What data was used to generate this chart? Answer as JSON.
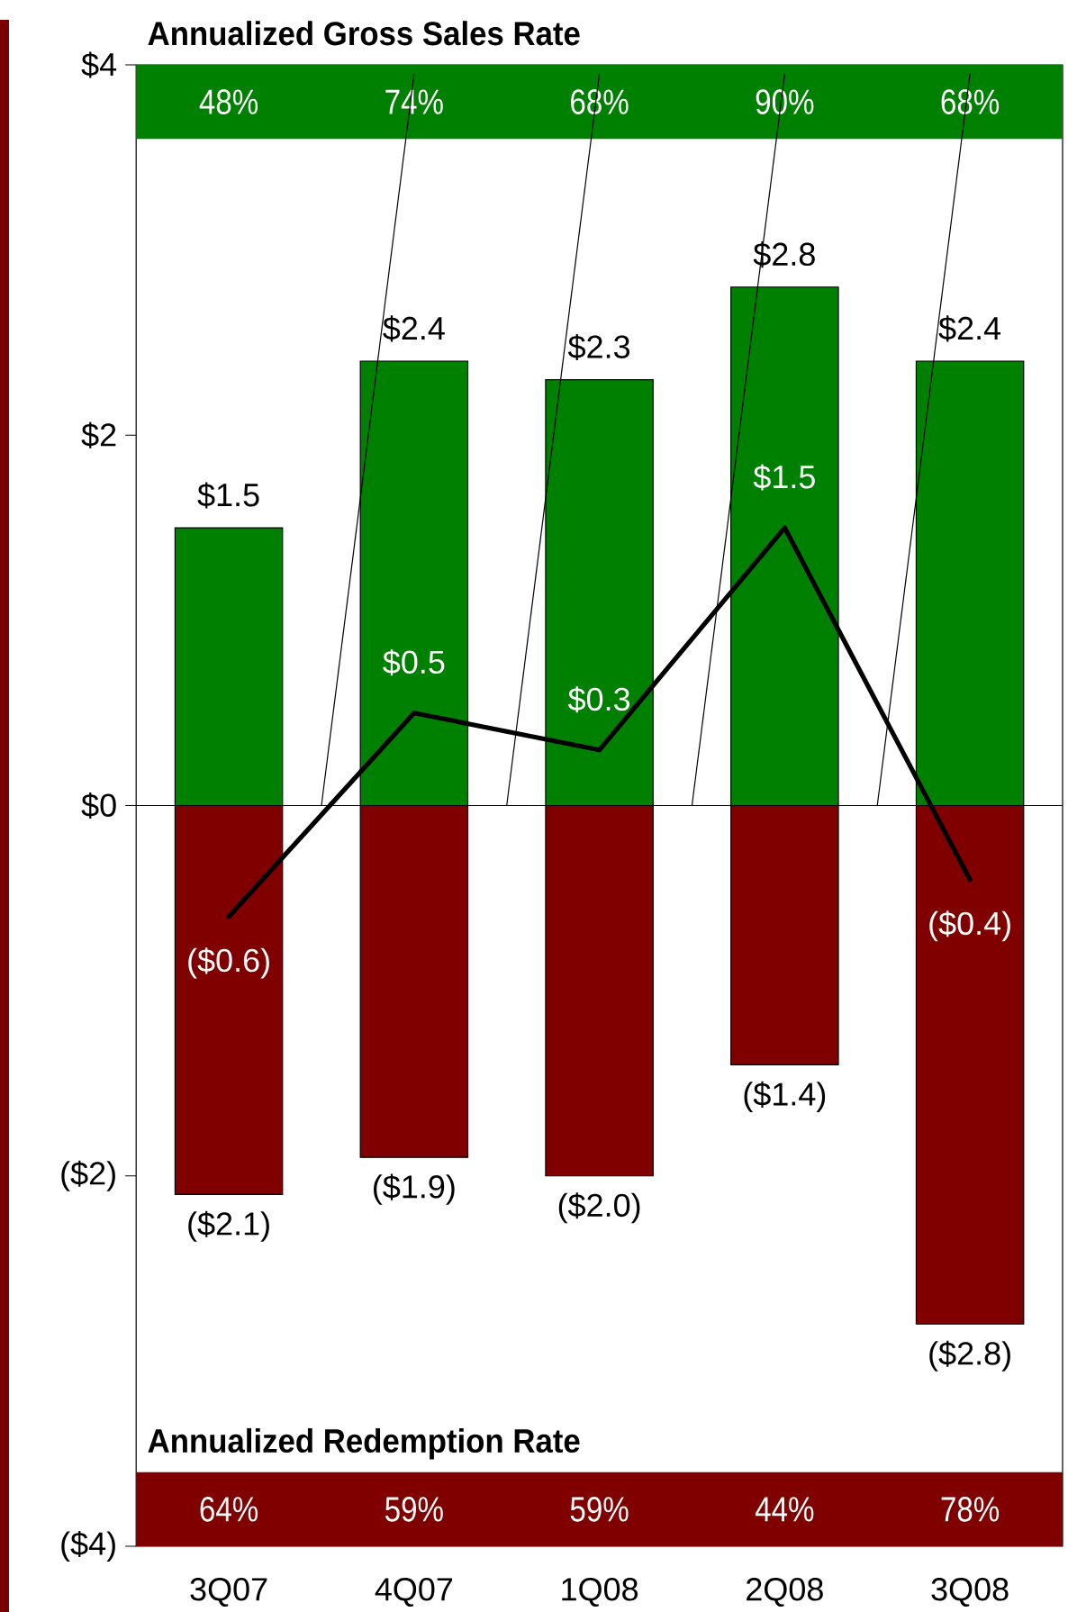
{
  "chart_data": {
    "type": "bar",
    "stacked": true,
    "categories": [
      "3Q07",
      "4Q07",
      "1Q08",
      "2Q08",
      "3Q08"
    ],
    "series": [
      {
        "color": "#008000",
        "values": [
          1.5,
          2.4,
          2.3,
          2.8,
          2.4
        ],
        "value_labels": [
          "$1.5",
          "$2.4",
          "$2.3",
          "$2.8",
          "$2.4"
        ]
      },
      {
        "color": "#800000",
        "values": [
          -2.1,
          -1.9,
          -2.0,
          -1.4,
          -2.8
        ],
        "value_labels": [
          "($2.1)",
          "($1.9)",
          "($2.0)",
          "($1.4)",
          "($2.8)"
        ]
      },
      {
        "type": "line",
        "color": "#000000",
        "values": [
          -0.6,
          0.5,
          0.3,
          1.5,
          -0.4
        ],
        "value_labels": [
          "($0.6)",
          "$0.5",
          "$0.3",
          "$1.5",
          "($0.4)"
        ]
      }
    ],
    "ylim": [
      -4,
      4
    ],
    "yticks": [
      {
        "value": -4,
        "label": "($4)"
      },
      {
        "value": -2,
        "label": "($2)"
      },
      {
        "value": 0,
        "label": "$0"
      },
      {
        "value": 2,
        "label": "$2"
      },
      {
        "value": 4,
        "label": "$4"
      }
    ],
    "annotations": [
      "Annualized Gross Sales Rate",
      "48%",
      "74%",
      "68%",
      "90%",
      "68%",
      "Annualized Redemption Rate",
      "64%",
      "59%",
      "59%",
      "44%",
      "78%"
    ]
  }
}
